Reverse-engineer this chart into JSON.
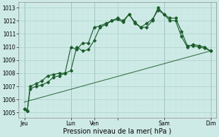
{
  "title": "Pression niveau de la mer( hPa )",
  "bg_color": "#ceeae6",
  "grid_color_major": "#aed4cf",
  "grid_color_minor": "#c4e4e0",
  "line_color": "#1a5c2a",
  "ylim": [
    1004.6,
    1013.4
  ],
  "xlim": [
    0,
    34
  ],
  "ylabel_vals": [
    1005,
    1006,
    1007,
    1008,
    1009,
    1010,
    1011,
    1012,
    1013
  ],
  "x_ticks": [
    1,
    9,
    13,
    17,
    25,
    33
  ],
  "x_tick_labels": [
    "Jeu",
    "Lun",
    "Ven",
    "",
    "Sam",
    "Dim"
  ],
  "vlines": [
    1,
    9,
    13,
    25,
    33
  ],
  "series1_x": [
    1,
    1.5,
    2,
    3,
    4,
    5,
    6,
    7,
    8,
    9,
    10,
    11,
    12,
    13,
    14,
    15,
    16,
    17,
    18,
    19,
    20,
    21,
    22,
    23,
    24,
    25,
    26,
    27,
    28,
    29,
    30,
    31,
    32,
    33
  ],
  "series1_y": [
    1005.3,
    1005.1,
    1006.8,
    1007.0,
    1007.1,
    1007.3,
    1007.7,
    1007.8,
    1008.0,
    1010.0,
    1009.8,
    1010.3,
    1010.3,
    1011.5,
    1011.6,
    1011.8,
    1012.0,
    1012.2,
    1012.0,
    1012.5,
    1011.9,
    1011.5,
    1011.5,
    1012.0,
    1013.0,
    1012.5,
    1012.2,
    1012.2,
    1011.2,
    1010.1,
    1010.1,
    1010.0,
    1009.9,
    1009.7
  ],
  "series2_x": [
    1,
    1.5,
    2,
    3,
    4,
    5,
    6,
    7,
    8,
    9,
    10,
    11,
    12,
    13,
    14,
    15,
    16,
    17,
    18,
    19,
    20,
    21,
    22,
    23,
    24,
    25,
    26,
    27,
    28,
    29,
    30,
    31,
    32,
    33
  ],
  "series2_y": [
    1005.3,
    1005.1,
    1007.0,
    1007.2,
    1007.4,
    1007.8,
    1007.9,
    1008.0,
    1008.0,
    1008.2,
    1010.0,
    1009.7,
    1009.8,
    1010.5,
    1011.5,
    1011.7,
    1012.0,
    1012.1,
    1011.9,
    1012.5,
    1011.8,
    1011.5,
    1011.8,
    1012.1,
    1012.8,
    1012.5,
    1012.0,
    1012.0,
    1010.8,
    1010.0,
    1010.2,
    1010.1,
    1010.0,
    1009.7
  ],
  "series3_x": [
    1,
    33
  ],
  "series3_y": [
    1005.8,
    1009.7
  ],
  "marker_size": 2.5,
  "tick_fontsize": 5.5,
  "xlabel_fontsize": 7,
  "spine_color": "#888888"
}
